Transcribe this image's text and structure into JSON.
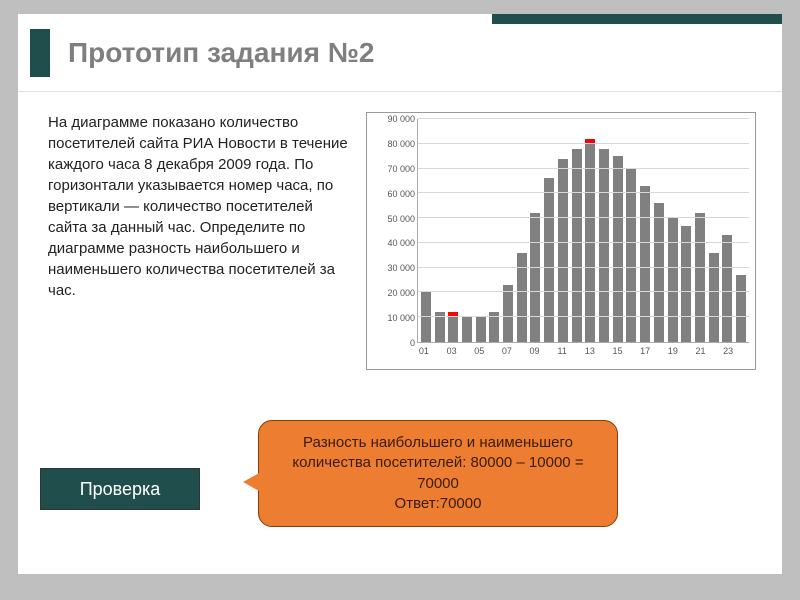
{
  "title": "Прототип задания №2",
  "description": "На диаграмме показано количество посетителей сайта РИА Новости в течение каждого часа 8 декабря 2009 года. По горизонтали указывается номер часа, по вертикали — количество посетителей сайта за данный час. Определите по диаграмме разность наибольшего и наименьшего количества посетителей за час.",
  "chart": {
    "type": "bar",
    "ymin": 0,
    "ymax": 90000,
    "ytick_step": 10000,
    "yticks": [
      "0",
      "10 000",
      "20 000",
      "30 000",
      "40 000",
      "50 000",
      "60 000",
      "70 000",
      "80 000",
      "90 000"
    ],
    "bar_color": "#808080",
    "marker_color": "#ff0000",
    "grid_color": "#d8d8d8",
    "axis_color": "#aaaaaa",
    "background_color": "#ffffff",
    "font_size": 9,
    "categories": [
      "01",
      "02",
      "03",
      "04",
      "05",
      "06",
      "07",
      "08",
      "09",
      "10",
      "11",
      "12",
      "13",
      "14",
      "15",
      "16",
      "17",
      "18",
      "19",
      "20",
      "21",
      "22",
      "23",
      "24"
    ],
    "xlabels_shown": [
      "01",
      "03",
      "05",
      "07",
      "09",
      "11",
      "13",
      "15",
      "17",
      "19",
      "21",
      "23"
    ],
    "values": [
      20000,
      12000,
      10000,
      10000,
      10000,
      12000,
      23000,
      36000,
      52000,
      66000,
      74000,
      78000,
      80000,
      78000,
      75000,
      70000,
      63000,
      56000,
      50000,
      47000,
      52000,
      36000,
      43000,
      27000
    ],
    "min_index": 2,
    "max_index": 12
  },
  "callout": {
    "line1": "Разность наибольшего и наименьшего количества посетителей: 80000 – 10000 = 70000",
    "line2": "Ответ:70000",
    "bg_color": "#ed7d31",
    "border_color": "#843c0b"
  },
  "check_button": "Проверка",
  "accent_color": "#1f4e4d"
}
